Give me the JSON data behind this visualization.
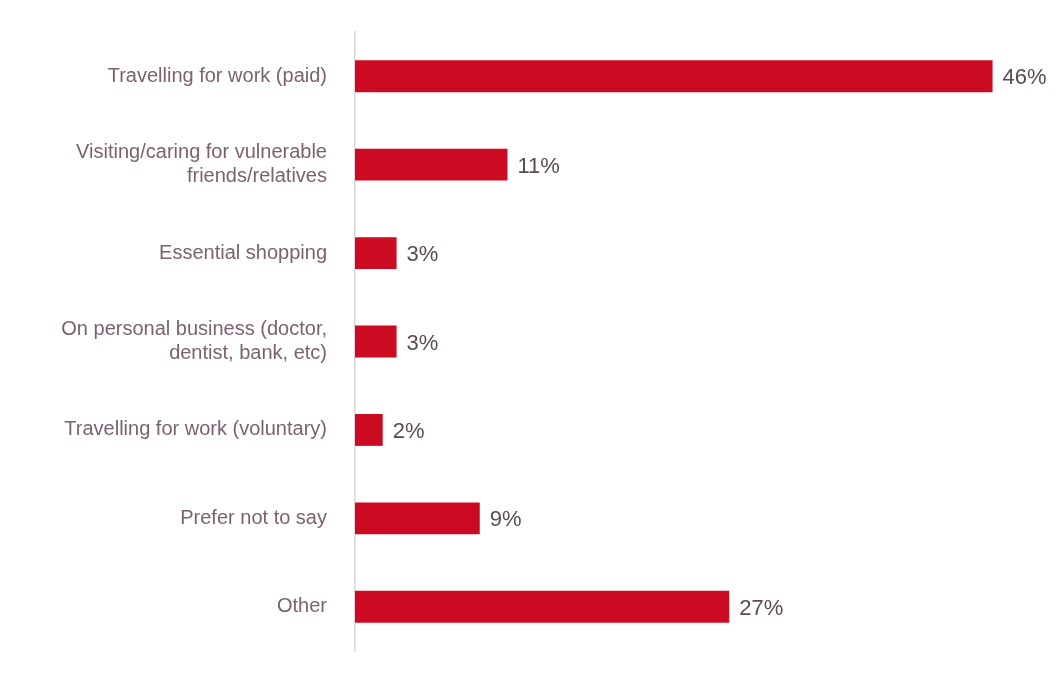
{
  "chart_data": {
    "type": "bar",
    "orientation": "horizontal",
    "categories": [
      "Travelling for work (paid)",
      "Visiting/caring for vulnerable friends/relatives",
      "Essential shopping",
      "On personal business (doctor, dentist, bank, etc)",
      "Travelling for work (voluntary)",
      "Prefer not to say",
      "Other"
    ],
    "values": [
      46,
      11,
      3,
      3,
      2,
      9,
      27
    ],
    "value_labels": [
      "46%",
      "11%",
      "3%",
      "3%",
      "2%",
      "9%",
      "27%"
    ],
    "color": "#cc0a22"
  }
}
